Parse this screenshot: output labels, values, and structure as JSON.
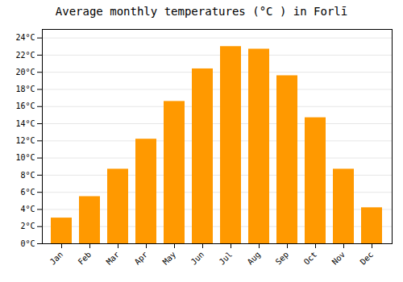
{
  "chart_data": {
    "type": "bar",
    "title": "Average monthly temperatures (°C ) in Forlī",
    "categories": [
      "Jan",
      "Feb",
      "Mar",
      "Apr",
      "May",
      "Jun",
      "Jul",
      "Aug",
      "Sep",
      "Oct",
      "Nov",
      "Dec"
    ],
    "values": [
      3.0,
      5.5,
      8.7,
      12.2,
      16.6,
      20.4,
      23.0,
      22.7,
      19.6,
      14.7,
      8.7,
      4.2
    ],
    "color": "#FF9900",
    "ylim": [
      0,
      25
    ],
    "yticks": [
      {
        "value": 0,
        "label": "0°C"
      },
      {
        "value": 2,
        "label": "2°C"
      },
      {
        "value": 4,
        "label": "4°C"
      },
      {
        "value": 6,
        "label": "6°C"
      },
      {
        "value": 8,
        "label": "8°C"
      },
      {
        "value": 10,
        "label": "10°C"
      },
      {
        "value": 12,
        "label": "12°C"
      },
      {
        "value": 14,
        "label": "14°C"
      },
      {
        "value": 16,
        "label": "16°C"
      },
      {
        "value": 18,
        "label": "18°C"
      },
      {
        "value": 20,
        "label": "20°C"
      },
      {
        "value": 22,
        "label": "22°C"
      },
      {
        "value": 24,
        "label": "24°C"
      }
    ],
    "grid": true
  }
}
